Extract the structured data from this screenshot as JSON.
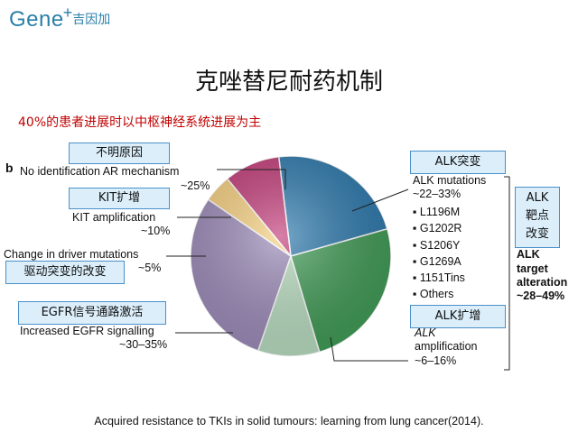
{
  "logo": {
    "text": "Gene",
    "plus": "+",
    "cn": "吉因加"
  },
  "slide": {
    "title": "克唑替尼耐药机制",
    "subtitle": "40%的患者进展时以中枢神经系统进展为主",
    "citation": "Acquired resistance to TKIs in solid tumours: learning from lung cancer(2014)."
  },
  "panel_letter": "b",
  "boxes": {
    "unknown": "不明原因",
    "kit": "KIT扩增",
    "driver": "驱动突变的改变",
    "egfr": "EGFR信号通路激活",
    "alk_mut": "ALK突变",
    "alk_amp": "ALK扩增",
    "alk_target": "ALK\n靶点\n改变"
  },
  "labels": {
    "unknown_name": "No identification AR mechanism",
    "unknown_pct": "~25%",
    "kit_name": "KIT amplification",
    "kit_pct": "~10%",
    "driver_name": "Change in driver mutations",
    "driver_pct": "~5%",
    "egfr_name": "Increased EGFR signalling",
    "egfr_pct": "~30–35%",
    "alk_mut_name": "ALK mutations",
    "alk_mut_pct": "~22–33%",
    "alk_mutations": [
      "L1196M",
      "G1202R",
      "S1206Y",
      "G1269A",
      "1151Tins",
      "Others"
    ],
    "alk_amp_name": "ALK",
    "alk_amp_name2": "amplification",
    "alk_amp_pct": "~6–16%",
    "alk_target_1": "ALK",
    "alk_target_2": "target",
    "alk_target_3": "alteration",
    "alk_target_pct": "~28–49%"
  },
  "chart_data": {
    "type": "pie",
    "title": "",
    "slices": [
      {
        "label": "No identification AR mechanism",
        "value": 25,
        "range": "~25%",
        "color": "#2b78ac"
      },
      {
        "label": "ALK mutations",
        "value": 27.5,
        "range": "~22–33%",
        "color": "#3f9a55"
      },
      {
        "label": "ALK amplification",
        "value": 11,
        "range": "~6–16%",
        "color": "#b8dcc0"
      },
      {
        "label": "Increased EGFR signalling",
        "value": 32.5,
        "range": "~30–35%",
        "color": "#9b8ab8"
      },
      {
        "label": "Change in driver mutations",
        "value": 5,
        "range": "~5%",
        "color": "#f6cf7e"
      },
      {
        "label": "KIT amplification",
        "value": 10,
        "range": "~10%",
        "color": "#c23a78"
      }
    ],
    "group": {
      "label": "ALK target alteration",
      "range": "~28–49%"
    }
  }
}
